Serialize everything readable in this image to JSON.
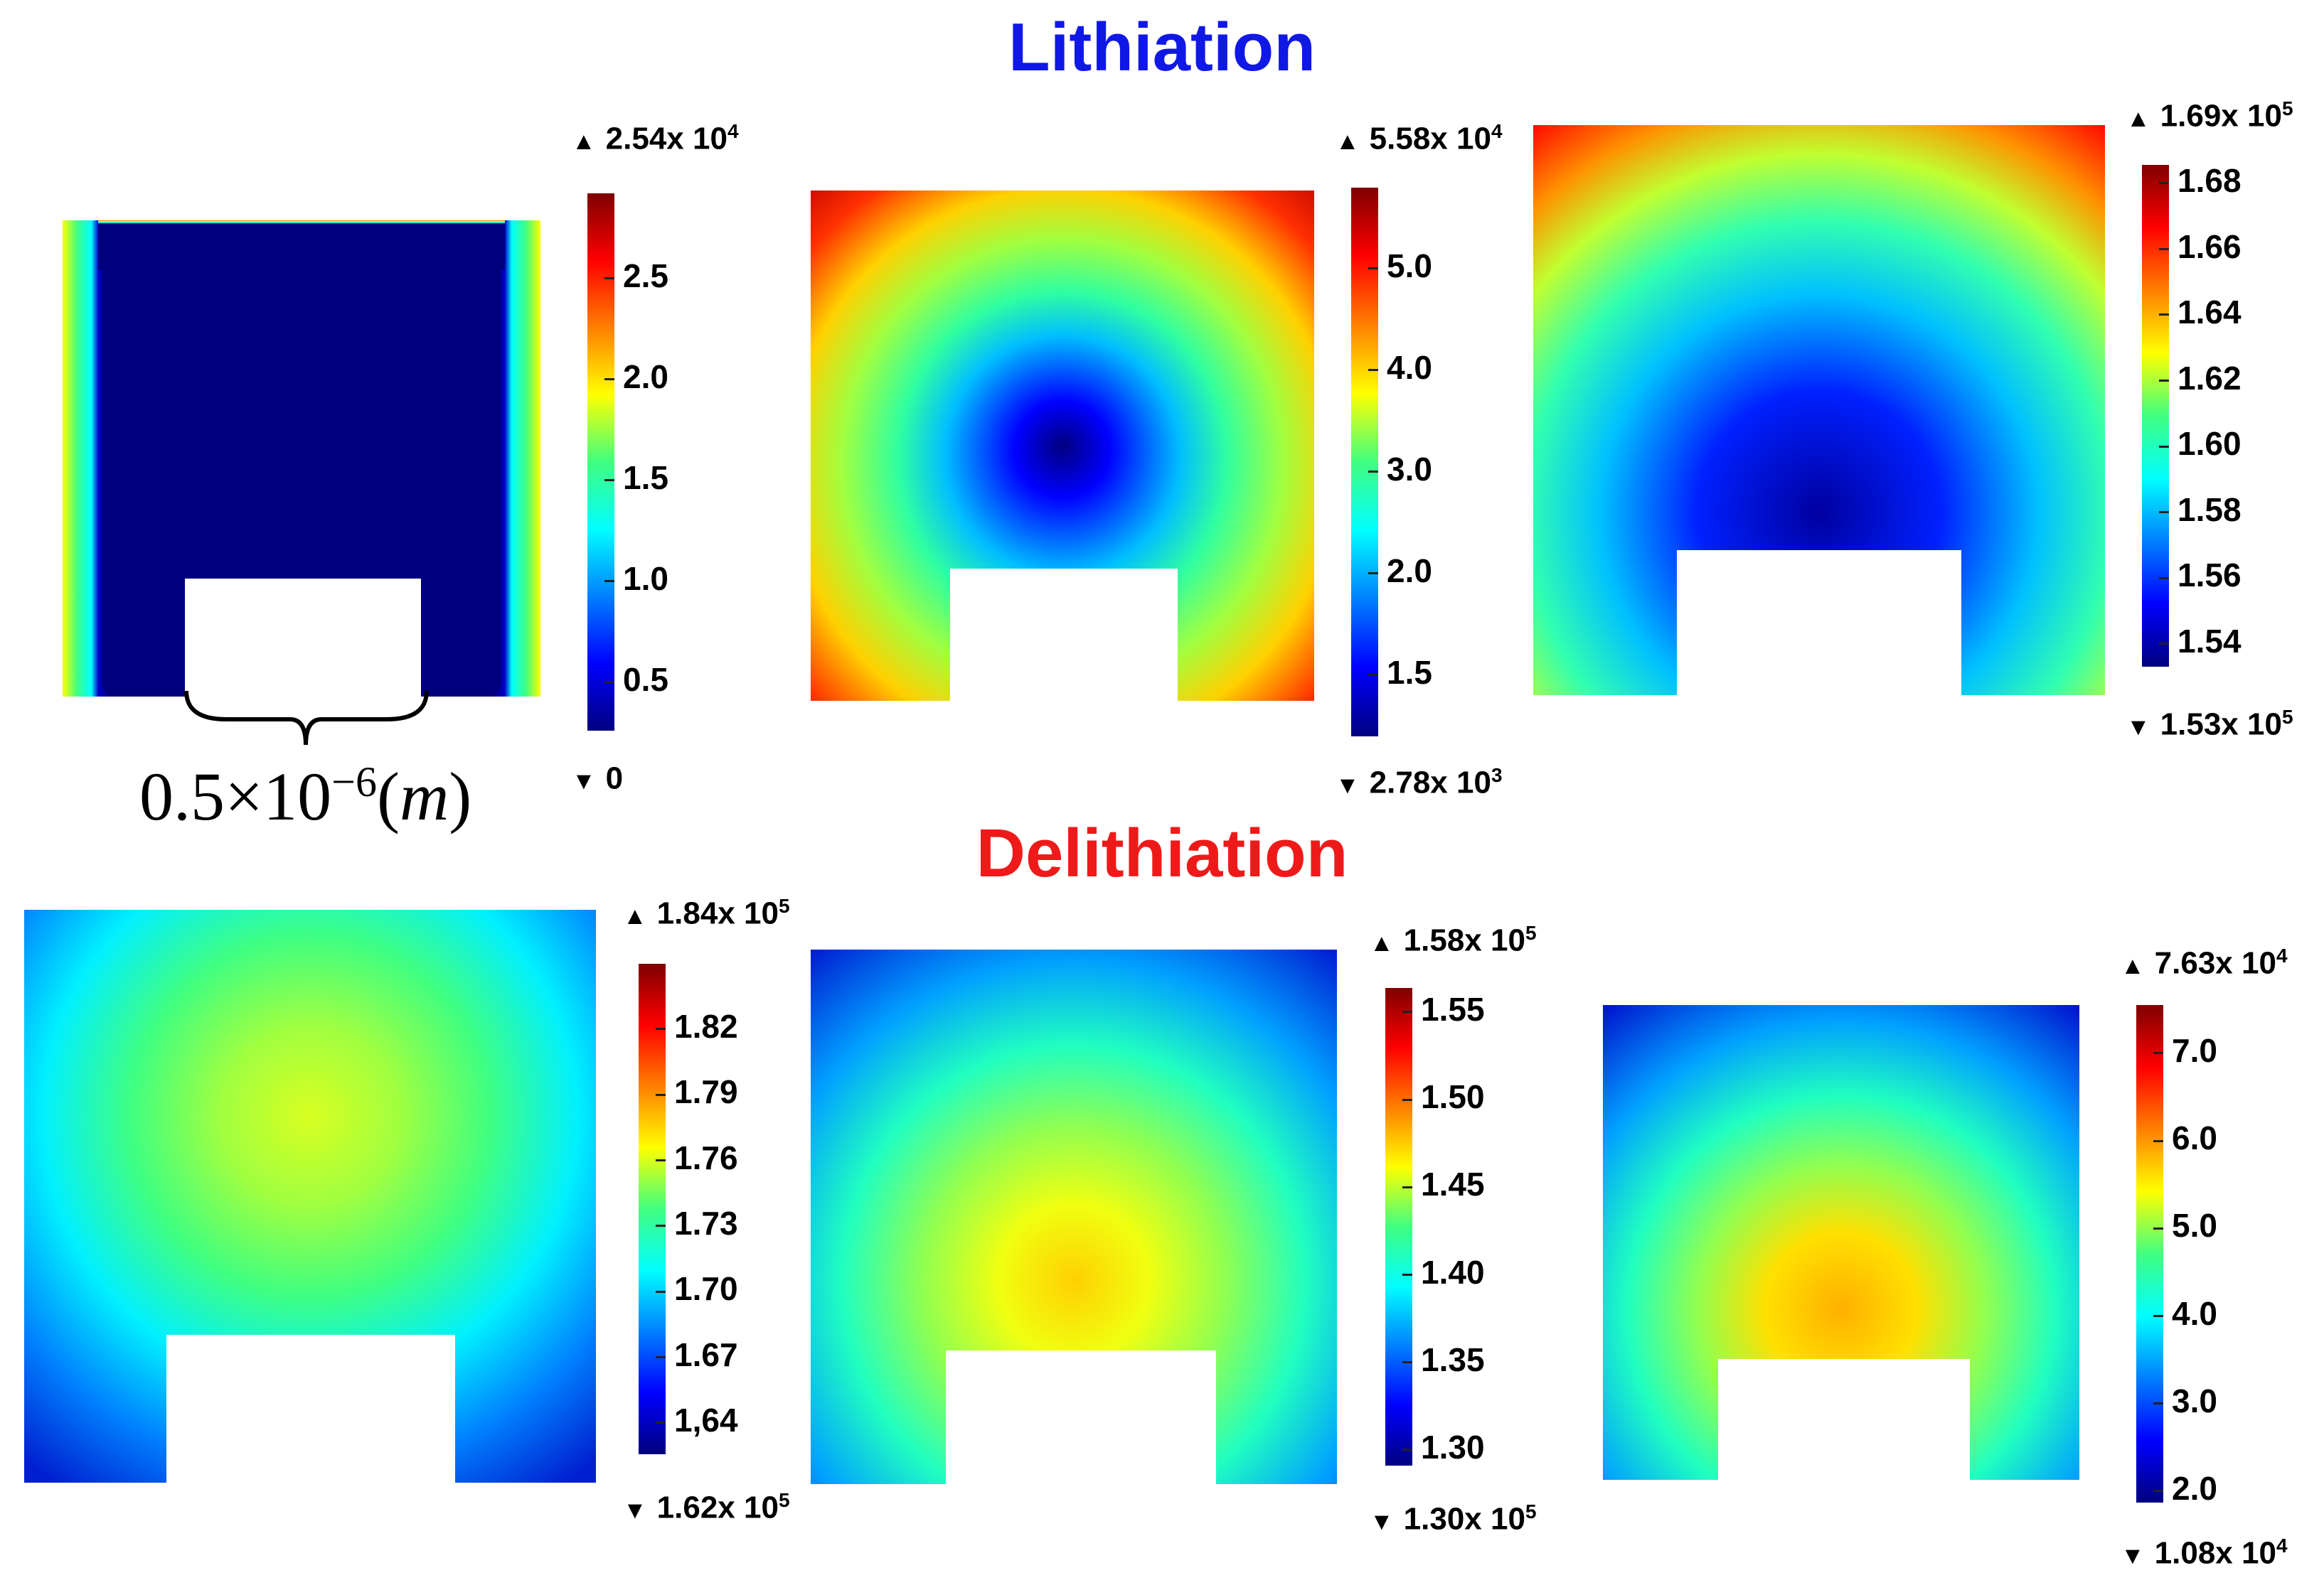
{
  "titles": {
    "lithiation": "Lithiation",
    "delithiation": "Delithiation"
  },
  "colors": {
    "lithiation_title": "#1018e6",
    "delithiation_title": "#ee1a1a",
    "jet_low": "#00007f",
    "jet_high": "#7f0000"
  },
  "scale": {
    "mantissa": "0.5",
    "times": "×",
    "base": "10",
    "exponent": "−6",
    "open": "(",
    "unit": "m",
    "close": ")"
  },
  "panels": [
    {
      "id": "lith-1",
      "max_label": {
        "mantissa": "2.54x 10",
        "exp": "4"
      },
      "min_label": {
        "mantissa": "0",
        "exp": ""
      },
      "ticks": [
        "2.5",
        "2.0",
        "1.5",
        "1.0",
        "0.5"
      ]
    },
    {
      "id": "lith-2",
      "max_label": {
        "mantissa": "5.58x 10",
        "exp": "4"
      },
      "min_label": {
        "mantissa": "2.78x 10",
        "exp": "3"
      },
      "ticks": [
        "5.0",
        "4.0",
        "3.0",
        "2.0",
        "1.5"
      ]
    },
    {
      "id": "lith-3",
      "max_label": {
        "mantissa": "1.69x 10",
        "exp": "5"
      },
      "min_label": {
        "mantissa": "1.53x 10",
        "exp": "5"
      },
      "ticks": [
        "1.68",
        "1.66",
        "1.64",
        "1.62",
        "1.60",
        "1.58",
        "1.56",
        "1.54"
      ]
    },
    {
      "id": "delith-1",
      "max_label": {
        "mantissa": "1.84x 10",
        "exp": "5"
      },
      "min_label": {
        "mantissa": "1.62x 10",
        "exp": "5"
      },
      "ticks": [
        "1.82",
        "1.79",
        "1.76",
        "1.73",
        "1.70",
        "1.67",
        "1,64"
      ]
    },
    {
      "id": "delith-2",
      "max_label": {
        "mantissa": "1.58x 10",
        "exp": "5"
      },
      "min_label": {
        "mantissa": "1.30x 10",
        "exp": "5"
      },
      "ticks": [
        "1.55",
        "1.50",
        "1.45",
        "1.40",
        "1.35",
        "1.30"
      ]
    },
    {
      "id": "delith-3",
      "max_label": {
        "mantissa": "7.63x 10",
        "exp": "4"
      },
      "min_label": {
        "mantissa": "1.08x 10",
        "exp": "4"
      },
      "ticks": [
        "7.0",
        "6.0",
        "5.0",
        "4.0",
        "3.0",
        "2.0"
      ]
    }
  ]
}
